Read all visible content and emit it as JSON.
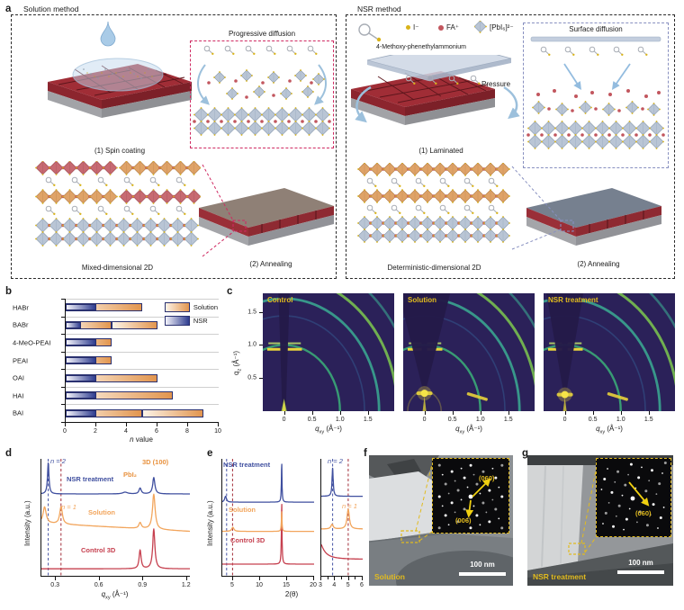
{
  "panel_a": {
    "letter": "a",
    "left": {
      "title": "Solution method",
      "step1": "(1) Spin coating",
      "box_title": "Progressive diffusion",
      "stack_label": "Mixed-dimensional 2D",
      "step2": "(2) Annealing"
    },
    "right": {
      "title": "NSR method",
      "molecule_label": "4-Methoxy-phenethylammonium",
      "legend": [
        {
          "label": "I⁻",
          "color": "#d9b31a"
        },
        {
          "label": "FA⁺",
          "color": "#c2565e"
        },
        {
          "label": "[PbI₆]²⁻",
          "color": "#b9c5d5"
        }
      ],
      "pressure": "Pressure",
      "step1": "(1) Laminated",
      "box_title": "Surface diffusion",
      "stack_label": "Deterministic-dimensional 2D",
      "step2": "(2) Annealing"
    }
  },
  "panel_b": {
    "letter": "b"
  },
  "panel_c": {
    "letter": "c"
  },
  "panel_d": {
    "letter": "d"
  },
  "panel_e": {
    "letter": "e"
  },
  "panel_f": {
    "letter": "f",
    "label": "Solution",
    "scale_bar": "100 nm",
    "spot_a": "(060)",
    "spot_b": "(006)"
  },
  "panel_g": {
    "letter": "g",
    "label": "NSR treatment",
    "scale_bar": "100 nm",
    "spot_a": "(060)"
  },
  "chart_data": [
    {
      "id": "b",
      "type": "bar",
      "orientation": "horizontal",
      "title": "",
      "categories": [
        "HABr",
        "BABr",
        "4-MeO-PEAI",
        "PEAI",
        "OAI",
        "HAI",
        "BAI"
      ],
      "series": [
        {
          "name": "Solution",
          "segments": [
            [
              [
                0,
                5
              ]
            ],
            [
              [
                0,
                3
              ],
              [
                3,
                6
              ]
            ],
            [
              [
                0,
                3
              ]
            ],
            [
              [
                0,
                3
              ]
            ],
            [
              [
                0,
                6
              ]
            ],
            [
              [
                0,
                7
              ]
            ],
            [
              [
                0,
                5
              ],
              [
                5,
                9
              ]
            ]
          ],
          "values": [
            5,
            6,
            3,
            3,
            6,
            7,
            9
          ],
          "color_from": "#fdf4e8",
          "color_to": "#e2954e"
        },
        {
          "name": "NSR",
          "segments": [
            [
              [
                0,
                2
              ]
            ],
            [
              [
                0,
                1
              ]
            ],
            [
              [
                0,
                2
              ]
            ],
            [
              [
                0,
                2
              ]
            ],
            [
              [
                0,
                2
              ]
            ],
            [
              [
                0,
                2
              ]
            ],
            [
              [
                0,
                2
              ]
            ]
          ],
          "values": [
            2,
            1,
            2,
            2,
            2,
            2,
            2
          ],
          "color_from": "#f3f3fa",
          "color_to": "#2e3c8f"
        }
      ],
      "xlabel_italic": "n",
      "xlabel_rest": " value",
      "xlim": [
        0,
        10
      ],
      "xticks": [
        0,
        2,
        4,
        6,
        8,
        10
      ],
      "grid": "row-separators",
      "legend_position": "top-right"
    },
    {
      "id": "c",
      "type": "heatmap",
      "maps": [
        {
          "label": "Control",
          "wedge": 0.1,
          "apex": 0.04,
          "spot": "spike",
          "bottom_arc": false,
          "small_ring": false
        },
        {
          "label": "Solution",
          "wedge": 0.46,
          "apex": 0.34,
          "spot": "bright",
          "spot_qz": 0.27,
          "bottom_arc": true,
          "small_ring": true
        },
        {
          "label": "NSR treatment",
          "wedge": 0.33,
          "apex": 0.32,
          "spot": "bright",
          "spot_qz": 0.25,
          "bottom_arc": true,
          "small_ring": false
        }
      ],
      "rings_q": [
        1.0,
        1.44,
        1.7,
        2.03,
        2.35
      ],
      "streaks_qz": [
        0.935,
        1.025
      ],
      "xlabel": {
        "base": "q",
        "sub": "xy",
        "unit": " (Å⁻¹)"
      },
      "ylabel": {
        "base": "q",
        "sub": "z",
        "unit": " (Å⁻¹)"
      },
      "xticks": [
        0,
        0.5,
        1.0,
        1.5
      ],
      "yticks": [
        0.5,
        1.0,
        1.5
      ],
      "xlim": [
        -0.38,
        1.97
      ],
      "ylim": [
        0,
        1.78
      ]
    },
    {
      "id": "d",
      "type": "line",
      "ylabel": "Intensity (a.u.)",
      "xlabel": {
        "base": "q",
        "sub": "xy",
        "unit": " (Å⁻¹)"
      },
      "xlim": [
        0.2,
        1.22
      ],
      "xticks": [
        0.3,
        0.6,
        0.9,
        1.2
      ],
      "dashed_lines": [
        {
          "x": 0.247,
          "color": "#4553a4"
        },
        {
          "x": 0.335,
          "color": "#a22c38"
        }
      ],
      "curves": [
        {
          "name": "Control 3D",
          "color": "#c6404f",
          "base": 0.06,
          "tilt": 0,
          "peaks": [
            {
              "c": 0.878,
              "h": 0.16,
              "w": 0.008
            },
            {
              "c": 0.972,
              "h": 0.34,
              "w": 0.009
            }
          ]
        },
        {
          "name": "Solution",
          "color": "#f2a55c",
          "base": 0.38,
          "tilt": 0.07,
          "peaks": [
            {
              "c": 0.222,
              "h": 0.14,
              "w": 0.013
            },
            {
              "c": 0.335,
              "h": 0.15,
              "w": 0.011
            },
            {
              "c": 0.878,
              "h": 0.05,
              "w": 0.01
            },
            {
              "c": 0.972,
              "h": 0.3,
              "w": 0.011
            }
          ]
        },
        {
          "name": "NSR treatment",
          "color": "#3f4f9f",
          "base": 0.7,
          "tilt": 0,
          "peaks": [
            {
              "c": 0.247,
              "h": 0.27,
              "w": 0.006
            },
            {
              "c": 0.775,
              "h": 0.015,
              "w": 0.02
            },
            {
              "c": 0.878,
              "h": 0.05,
              "w": 0.009
            },
            {
              "c": 0.972,
              "h": 0.14,
              "w": 0.009
            }
          ]
        }
      ],
      "annotations": [
        {
          "text": "n = 2",
          "color": "#3f4f9f"
        },
        {
          "text": "n = 1",
          "color": "#f2a55c"
        },
        {
          "text": "PbI₂",
          "color": "#e8923f"
        },
        {
          "text": "3D (100)",
          "color": "#e8923f"
        }
      ]
    },
    {
      "id": "e1",
      "type": "line",
      "ylabel": "Intensity (a.u.)",
      "xlabel": "2(θ)",
      "xlim": [
        3,
        20
      ],
      "xticks": [
        5,
        10,
        15,
        20
      ],
      "dashed_lines": [
        {
          "x": 3.8,
          "color": "#4553a4"
        },
        {
          "x": 4.9,
          "color": "#a22c38"
        }
      ],
      "curves": [
        {
          "name": "Control 3D",
          "color": "#c6404f",
          "base": 0.1,
          "tilt": 0,
          "peaks": [
            {
              "c": 14.0,
              "h": 0.52,
              "w": 0.07
            }
          ]
        },
        {
          "name": "Solution",
          "color": "#f2a55c",
          "base": 0.38,
          "tilt": 0,
          "peaks": [
            {
              "c": 4.95,
              "h": 0.035,
              "w": 0.25
            },
            {
              "c": 14.0,
              "h": 0.17,
              "w": 0.07
            }
          ]
        },
        {
          "name": "NSR treatment",
          "color": "#3f4f9f",
          "base": 0.63,
          "tilt": 0,
          "peaks": [
            {
              "c": 3.6,
              "h": 0.05,
              "w": 0.2
            },
            {
              "c": 14.0,
              "h": 0.33,
              "w": 0.07
            }
          ]
        }
      ]
    },
    {
      "id": "e2",
      "type": "line",
      "xlim": [
        3,
        6
      ],
      "xticks": [
        3,
        4,
        5,
        6
      ],
      "minor_ticks": [
        3.5,
        4.5,
        5.5
      ],
      "dashed_lines": [
        {
          "x": 3.82,
          "color": "#4553a4"
        },
        {
          "x": 4.95,
          "color": "#a22c38"
        }
      ],
      "curves": [
        {
          "name": "Control 3D",
          "color": "#c6404f",
          "base": 0.14,
          "tilt": 0,
          "peaks": [
            {
              "c": 2.7,
              "h": 0.2,
              "w": 0.4
            }
          ]
        },
        {
          "name": "Solution",
          "color": "#f2a55c",
          "base": 0.4,
          "tilt": 0,
          "peaks": [
            {
              "c": 3.78,
              "h": 0.04,
              "w": 0.1
            },
            {
              "c": 4.95,
              "h": 0.17,
              "w": 0.1
            }
          ]
        },
        {
          "name": "NSR treatment",
          "color": "#3f4f9f",
          "base": 0.68,
          "tilt": 0,
          "peaks": [
            {
              "c": 3.82,
              "h": 0.24,
              "w": 0.05
            }
          ]
        }
      ],
      "annotations": [
        {
          "text": "n = 2",
          "color": "#3f4f9f"
        },
        {
          "text": "n = 1",
          "color": "#f2a55c"
        }
      ]
    }
  ]
}
